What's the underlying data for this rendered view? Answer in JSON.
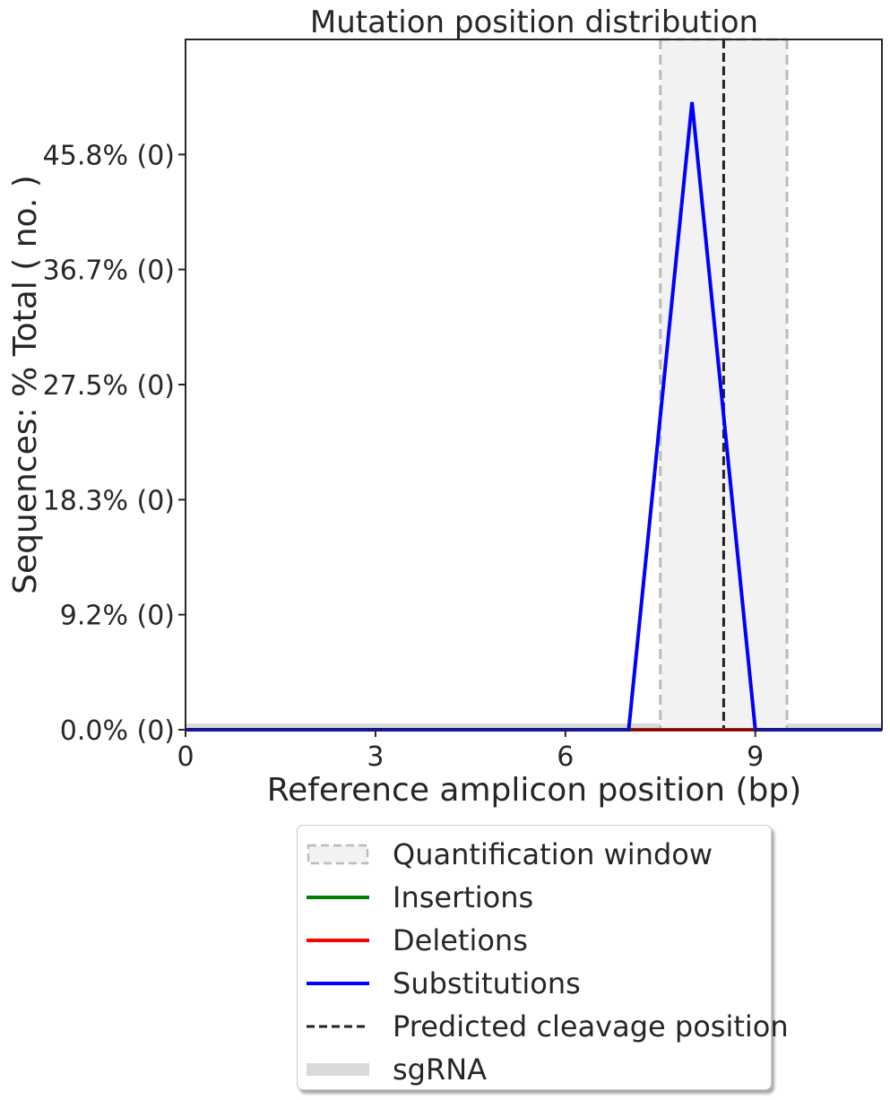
{
  "chart_data": {
    "type": "line",
    "title": "Mutation position distribution",
    "xlabel": "Reference amplicon position (bp)",
    "ylabel": "Sequences: % Total ( no. )",
    "xlim": [
      0,
      11
    ],
    "ylim": [
      0,
      55
    ],
    "x_ticks": [
      0,
      3,
      6,
      9
    ],
    "x_tick_labels": [
      "0",
      "3",
      "6",
      "9"
    ],
    "y_ticks": [
      0,
      9.17,
      18.33,
      27.5,
      36.67,
      45.83
    ],
    "y_tick_labels": [
      "0.0% (0)",
      "9.2% (0)",
      "18.3% (0)",
      "27.5% (0)",
      "36.7% (0)",
      "45.8% (0)"
    ],
    "grid": false,
    "quantification_window": [
      7.5,
      9.5
    ],
    "predicted_cleavage_position": 8.5,
    "sgrna_band": [
      0,
      11
    ],
    "series": [
      {
        "name": "Insertions",
        "color": "#008000",
        "x": [
          0,
          1,
          2,
          3,
          4,
          5,
          6,
          7,
          8,
          9,
          10,
          11
        ],
        "y": [
          0,
          0,
          0,
          0,
          0,
          0,
          0,
          0,
          0,
          0,
          0,
          0
        ]
      },
      {
        "name": "Deletions",
        "color": "#ff0000",
        "x": [
          0,
          1,
          2,
          3,
          4,
          5,
          6,
          7,
          8,
          9,
          10,
          11
        ],
        "y": [
          0,
          0,
          0,
          0,
          0,
          0,
          0,
          0,
          0,
          0,
          0,
          0
        ]
      },
      {
        "name": "Substitutions",
        "color": "#0000ff",
        "x": [
          0,
          1,
          2,
          3,
          4,
          5,
          6,
          7,
          8,
          9,
          10,
          11
        ],
        "y": [
          0,
          0,
          0,
          0,
          0,
          0,
          0,
          0,
          50,
          0,
          0,
          0
        ]
      }
    ],
    "legend": {
      "placement": "bottom-center",
      "items": [
        {
          "label": "Quantification window",
          "kind": "window"
        },
        {
          "label": "Insertions",
          "kind": "line",
          "color": "#008000"
        },
        {
          "label": "Deletions",
          "kind": "line",
          "color": "#ff0000"
        },
        {
          "label": "Substitutions",
          "kind": "line",
          "color": "#0000ff"
        },
        {
          "label": "Predicted cleavage position",
          "kind": "dashed",
          "color": "#222222"
        },
        {
          "label": "sgRNA",
          "kind": "band",
          "color": "#d9d9d9"
        }
      ]
    }
  }
}
